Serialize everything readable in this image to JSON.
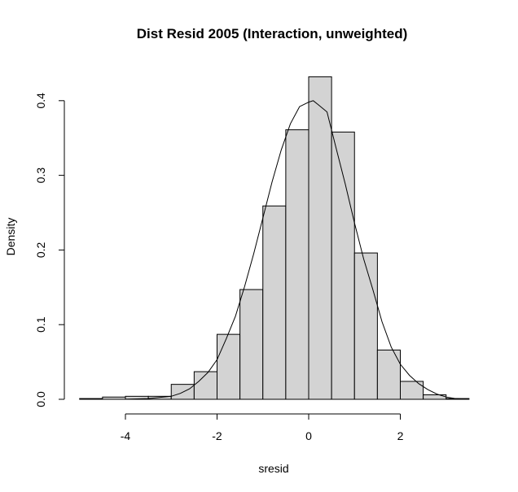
{
  "chart_data": {
    "type": "bar",
    "subtype": "histogram",
    "title": "Dist Resid 2005 (Interaction, unweighted)",
    "xlabel": "sresid",
    "ylabel": "Density",
    "xlim": [
      -5.2,
      3.6
    ],
    "ylim": [
      0,
      0.43
    ],
    "x_ticks": [
      -4,
      -2,
      0,
      2
    ],
    "y_ticks": [
      0.0,
      0.1,
      0.2,
      0.3,
      0.4
    ],
    "x_tick_labels": [
      "-4",
      "-2",
      "0",
      "2"
    ],
    "y_tick_labels": [
      "0.0",
      "0.1",
      "0.2",
      "0.3",
      "0.4"
    ],
    "bins": [
      {
        "x0": -5.0,
        "x1": -4.5,
        "density": 0.001
      },
      {
        "x0": -4.5,
        "x1": -4.0,
        "density": 0.003
      },
      {
        "x0": -4.0,
        "x1": -3.5,
        "density": 0.004
      },
      {
        "x0": -3.5,
        "x1": -3.0,
        "density": 0.004
      },
      {
        "x0": -3.0,
        "x1": -2.5,
        "density": 0.02
      },
      {
        "x0": -2.5,
        "x1": -2.0,
        "density": 0.037
      },
      {
        "x0": -2.0,
        "x1": -1.5,
        "density": 0.087
      },
      {
        "x0": -1.5,
        "x1": -1.0,
        "density": 0.147
      },
      {
        "x0": -1.0,
        "x1": -0.5,
        "density": 0.259
      },
      {
        "x0": -0.5,
        "x1": 0.0,
        "density": 0.361
      },
      {
        "x0": 0.0,
        "x1": 0.5,
        "density": 0.432
      },
      {
        "x0": 0.5,
        "x1": 1.0,
        "density": 0.358
      },
      {
        "x0": 1.0,
        "x1": 1.5,
        "density": 0.196
      },
      {
        "x0": 1.5,
        "x1": 2.0,
        "density": 0.066
      },
      {
        "x0": 2.0,
        "x1": 2.5,
        "density": 0.024
      },
      {
        "x0": 2.5,
        "x1": 3.0,
        "density": 0.006
      },
      {
        "x0": 3.0,
        "x1": 3.5,
        "density": 0.001
      }
    ],
    "curve": {
      "x": [
        -5.0,
        -4.5,
        -4.0,
        -3.5,
        -3.0,
        -2.8,
        -2.6,
        -2.4,
        -2.2,
        -2.0,
        -1.8,
        -1.6,
        -1.4,
        -1.2,
        -1.0,
        -0.8,
        -0.6,
        -0.4,
        -0.2,
        0.0,
        0.1,
        0.2,
        0.4,
        0.6,
        0.8,
        1.0,
        1.2,
        1.4,
        1.6,
        1.8,
        2.0,
        2.2,
        2.4,
        2.6,
        2.8,
        3.0,
        3.2,
        3.5
      ],
      "y": [
        0.0,
        0.0,
        0.0001,
        0.001,
        0.004,
        0.008,
        0.014,
        0.024,
        0.036,
        0.053,
        0.081,
        0.111,
        0.151,
        0.195,
        0.243,
        0.291,
        0.334,
        0.369,
        0.392,
        0.398,
        0.4,
        0.395,
        0.385,
        0.336,
        0.288,
        0.236,
        0.188,
        0.147,
        0.104,
        0.07,
        0.047,
        0.032,
        0.021,
        0.013,
        0.007,
        0.003,
        0.001,
        0.0
      ]
    }
  },
  "colors": {
    "bar_fill": "#d3d3d3",
    "stroke": "#000000",
    "background": "#ffffff"
  }
}
